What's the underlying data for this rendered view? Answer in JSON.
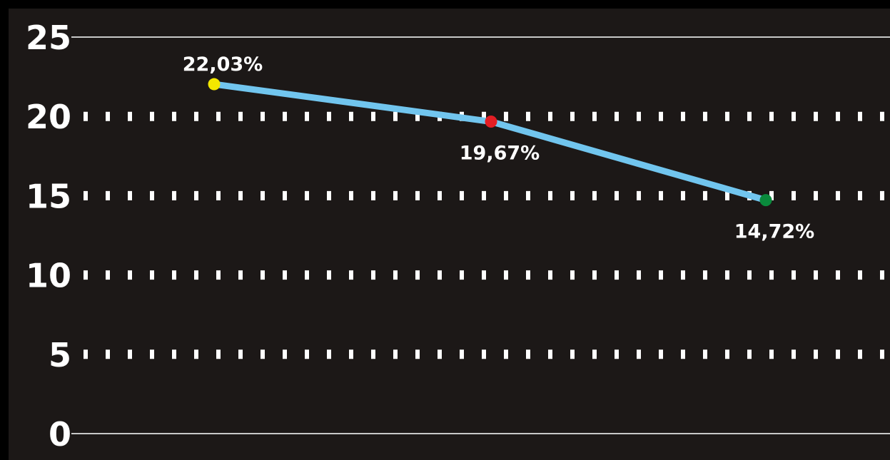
{
  "chart_data": {
    "type": "line",
    "categories": [
      "",
      "",
      ""
    ],
    "series": [
      {
        "values": [
          22.03,
          19.67,
          14.72
        ],
        "labels": [
          "22,03%",
          "19,67%",
          "14,72%"
        ],
        "point_colors": [
          "#f3e800",
          "#e31e24",
          "#0a8a3c"
        ]
      }
    ],
    "ylim": [
      0,
      25
    ],
    "yticks": [
      0,
      5,
      10,
      15,
      20,
      25
    ],
    "ytick_labels": [
      "0",
      "5",
      "10",
      "15",
      "20",
      "25"
    ],
    "grid": true,
    "colors": {
      "background": "#1c1817",
      "line": "#71c5ee",
      "grid": "#ffffff",
      "axis_line": "#c8c8c8",
      "text": "#ffffff"
    }
  }
}
